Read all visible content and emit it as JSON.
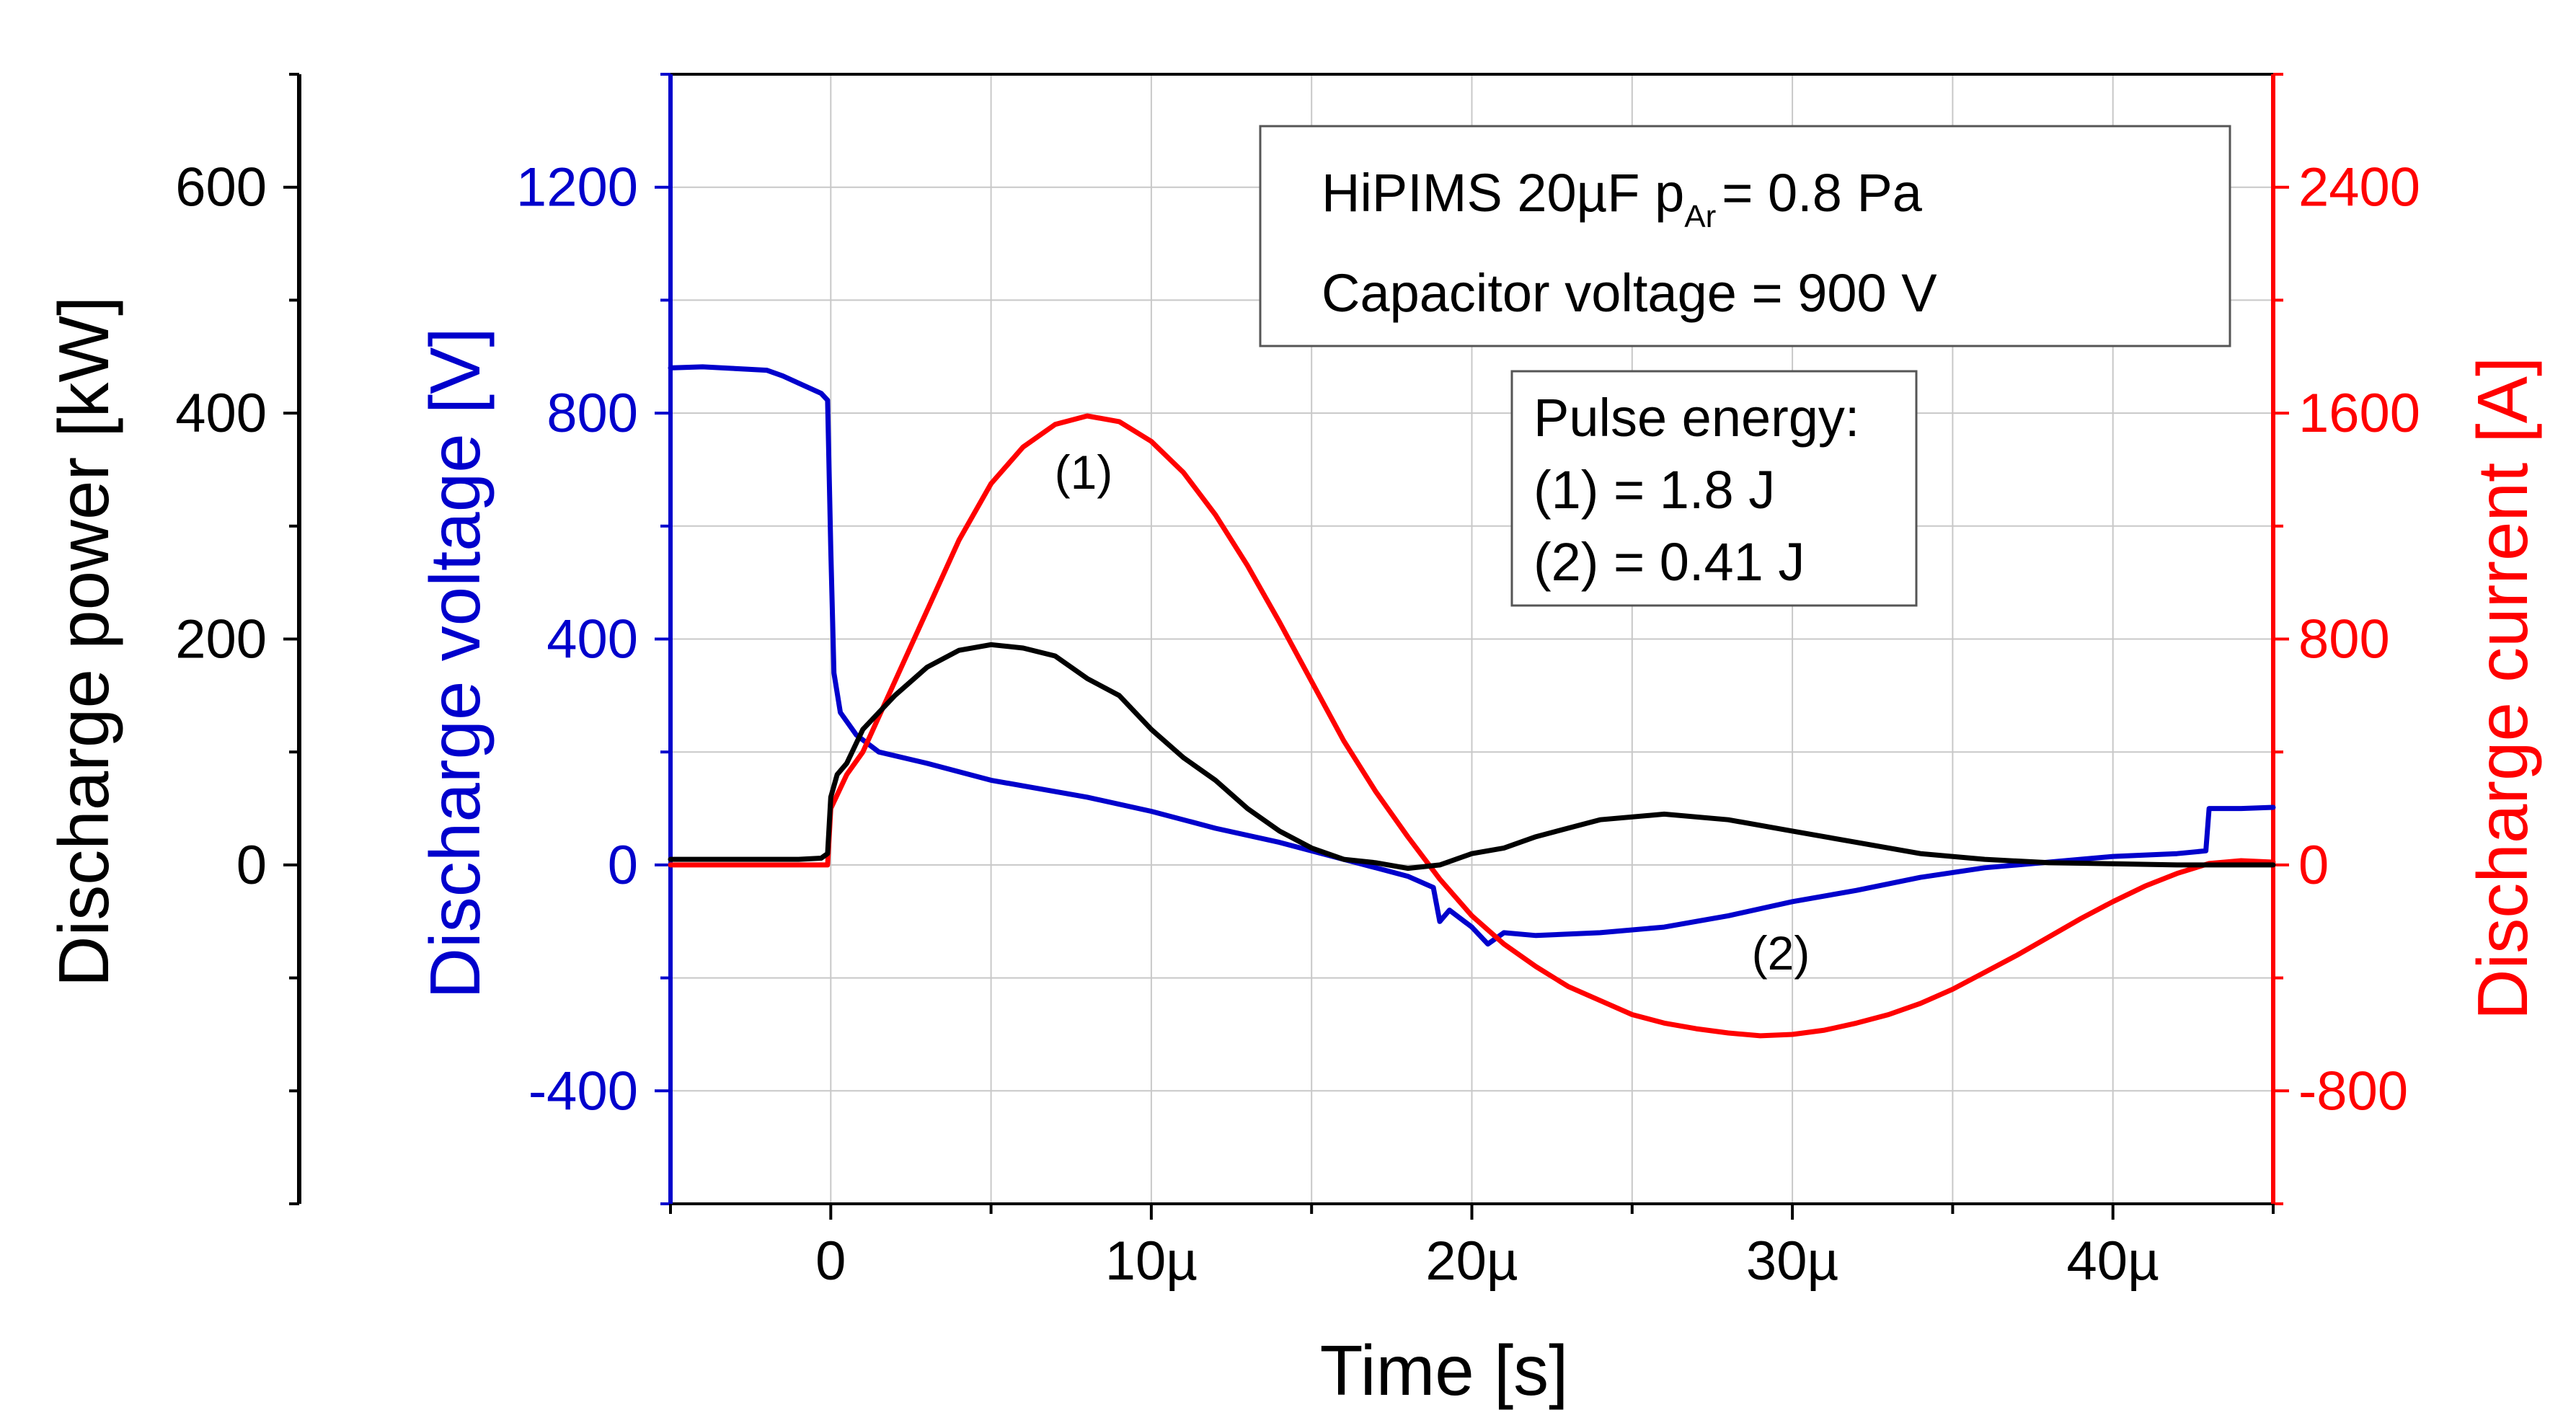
{
  "chart_data": {
    "type": "line",
    "title": "",
    "colors": {
      "voltage": "#0000cc",
      "current": "#ff0000",
      "power": "#000000",
      "grid": "#c8c8c8"
    },
    "xlabel": "Time [s]",
    "xlim": [
      -5,
      45
    ],
    "x_ticks": [
      0,
      10,
      20,
      30,
      40
    ],
    "x_tick_labels": [
      "0",
      "10µ",
      "20µ",
      "30µ",
      "40µ"
    ],
    "axes": {
      "power": {
        "label": "Discharge power [kW]",
        "lim": [
          -300,
          700
        ],
        "ticks": [
          0,
          200,
          400,
          600
        ],
        "tick_labels": [
          "0",
          "200",
          "400",
          "600"
        ]
      },
      "voltage": {
        "label": "Discharge voltage [V]",
        "lim": [
          -600,
          1400
        ],
        "ticks": [
          -400,
          0,
          400,
          800,
          1200
        ],
        "tick_labels": [
          "-400",
          "0",
          "400",
          "800",
          "1200"
        ]
      },
      "current": {
        "label": "Discharge current [A]",
        "lim": [
          -1200,
          2800
        ],
        "ticks": [
          -800,
          0,
          800,
          1600,
          2400
        ],
        "tick_labels": [
          "-800",
          "0",
          "800",
          "1600",
          "2400"
        ]
      }
    },
    "series": [
      {
        "name": "Discharge voltage",
        "axis": "voltage",
        "color": "#0000cc",
        "points": [
          [
            -5,
            880
          ],
          [
            -4,
            882
          ],
          [
            -3,
            879
          ],
          [
            -2,
            876
          ],
          [
            -1.5,
            866
          ],
          [
            -1,
            853
          ],
          [
            -0.3,
            835
          ],
          [
            -0.1,
            823
          ],
          [
            0,
            560
          ],
          [
            0.1,
            340
          ],
          [
            0.3,
            270
          ],
          [
            0.8,
            230
          ],
          [
            1.5,
            200
          ],
          [
            3,
            180
          ],
          [
            5,
            150
          ],
          [
            8,
            120
          ],
          [
            10,
            95
          ],
          [
            12,
            65
          ],
          [
            14,
            40
          ],
          [
            16,
            10
          ],
          [
            17,
            -5
          ],
          [
            18,
            -20
          ],
          [
            18.8,
            -40
          ],
          [
            19,
            -100
          ],
          [
            19.3,
            -80
          ],
          [
            20,
            -110
          ],
          [
            20.5,
            -140
          ],
          [
            21,
            -120
          ],
          [
            22,
            -125
          ],
          [
            24,
            -120
          ],
          [
            26,
            -110
          ],
          [
            28,
            -90
          ],
          [
            30,
            -65
          ],
          [
            32,
            -45
          ],
          [
            34,
            -22
          ],
          [
            36,
            -5
          ],
          [
            38,
            5
          ],
          [
            40,
            15
          ],
          [
            42,
            20
          ],
          [
            42.9,
            25
          ],
          [
            43,
            100
          ],
          [
            44,
            100
          ],
          [
            45,
            102
          ]
        ]
      },
      {
        "name": "Discharge current",
        "axis": "current",
        "color": "#ff0000",
        "points": [
          [
            -5,
            0
          ],
          [
            -1,
            0
          ],
          [
            -0.1,
            0
          ],
          [
            0,
            200
          ],
          [
            0.5,
            320
          ],
          [
            1,
            400
          ],
          [
            2,
            650
          ],
          [
            3,
            900
          ],
          [
            4,
            1150
          ],
          [
            5,
            1350
          ],
          [
            6,
            1480
          ],
          [
            7,
            1560
          ],
          [
            8,
            1590
          ],
          [
            9,
            1570
          ],
          [
            10,
            1500
          ],
          [
            11,
            1390
          ],
          [
            12,
            1240
          ],
          [
            13,
            1060
          ],
          [
            14,
            860
          ],
          [
            15,
            650
          ],
          [
            16,
            440
          ],
          [
            17,
            260
          ],
          [
            18,
            100
          ],
          [
            19,
            -50
          ],
          [
            20,
            -180
          ],
          [
            21,
            -280
          ],
          [
            22,
            -360
          ],
          [
            23,
            -430
          ],
          [
            24,
            -480
          ],
          [
            25,
            -530
          ],
          [
            26,
            -560
          ],
          [
            27,
            -580
          ],
          [
            28,
            -595
          ],
          [
            29,
            -605
          ],
          [
            30,
            -600
          ],
          [
            31,
            -585
          ],
          [
            32,
            -560
          ],
          [
            33,
            -530
          ],
          [
            34,
            -490
          ],
          [
            35,
            -440
          ],
          [
            36,
            -380
          ],
          [
            37,
            -320
          ],
          [
            38,
            -255
          ],
          [
            39,
            -190
          ],
          [
            40,
            -130
          ],
          [
            41,
            -75
          ],
          [
            42,
            -30
          ],
          [
            43,
            5
          ],
          [
            44,
            15
          ],
          [
            45,
            10
          ]
        ]
      },
      {
        "name": "Discharge power",
        "axis": "power",
        "color": "#000000",
        "points": [
          [
            -5,
            5
          ],
          [
            -1,
            5
          ],
          [
            -0.3,
            6
          ],
          [
            -0.1,
            10
          ],
          [
            0,
            60
          ],
          [
            0.2,
            80
          ],
          [
            0.5,
            90
          ],
          [
            1,
            120
          ],
          [
            2,
            150
          ],
          [
            3,
            175
          ],
          [
            4,
            190
          ],
          [
            5,
            195
          ],
          [
            6,
            192
          ],
          [
            7,
            185
          ],
          [
            8,
            165
          ],
          [
            9,
            150
          ],
          [
            10,
            120
          ],
          [
            11,
            95
          ],
          [
            12,
            75
          ],
          [
            13,
            50
          ],
          [
            14,
            30
          ],
          [
            15,
            15
          ],
          [
            16,
            5
          ],
          [
            17,
            2
          ],
          [
            18,
            -3
          ],
          [
            19,
            0
          ],
          [
            20,
            10
          ],
          [
            21,
            15
          ],
          [
            22,
            25
          ],
          [
            24,
            40
          ],
          [
            26,
            45
          ],
          [
            28,
            40
          ],
          [
            30,
            30
          ],
          [
            32,
            20
          ],
          [
            34,
            10
          ],
          [
            36,
            5
          ],
          [
            38,
            2
          ],
          [
            40,
            1
          ],
          [
            42,
            0
          ],
          [
            45,
            0
          ]
        ]
      }
    ],
    "annotations": {
      "box1_line1_main": "HiPIMS 20µF   p",
      "box1_line1_sub": "Ar",
      "box1_line1_rest": "= 0.8  Pa",
      "box1_line2": "Capacitor voltage = 900 V",
      "box2_line1": "Pulse energy:",
      "box2_line2": "(1) = 1.8 J",
      "box2_line3": "(2) = 0.41 J",
      "curve_label_1": "(1)",
      "curve_label_2": "(2)"
    }
  }
}
